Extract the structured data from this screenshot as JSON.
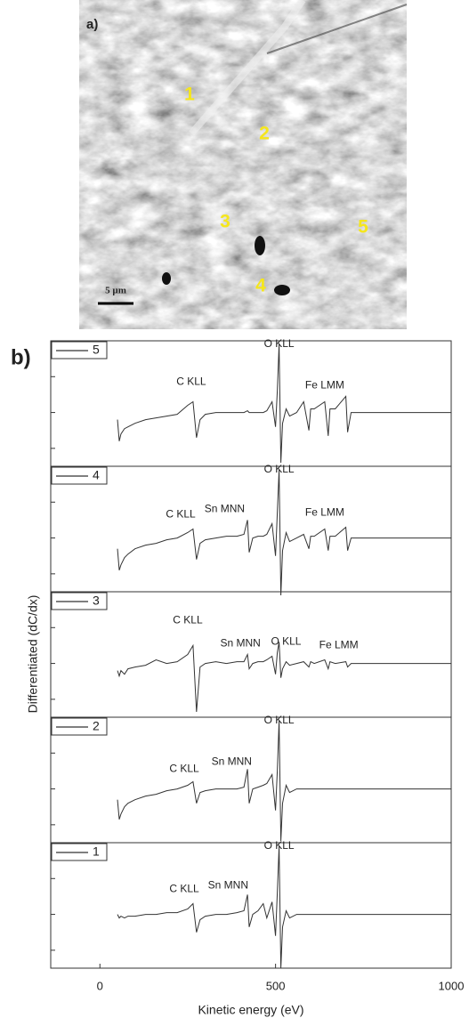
{
  "image": {
    "panel_label": "a)",
    "regions": [
      "1",
      "2",
      "3",
      "4",
      "5"
    ],
    "scale_bar": "5 µm"
  },
  "panel_label": "b)",
  "chart_data": {
    "type": "line",
    "x_label": "Kinetic energy (eV)",
    "y_label": "Differentiated (dC/dx)",
    "xlim": [
      -140,
      1000
    ],
    "xticks": [
      0,
      500,
      1000
    ],
    "ylim": [
      -1.5,
      2.0
    ],
    "yticks": [
      -1,
      0,
      1
    ],
    "x": [
      50,
      55,
      60,
      70,
      80,
      100,
      130,
      160,
      190,
      220,
      250,
      265,
      275,
      285,
      300,
      330,
      360,
      390,
      410,
      420,
      425,
      435,
      450,
      465,
      475,
      490,
      500,
      505,
      510,
      515,
      520,
      530,
      540,
      560,
      580,
      595,
      600,
      610,
      640,
      650,
      655,
      670,
      700,
      705,
      715,
      750,
      800,
      850,
      900,
      950,
      1000
    ],
    "series": [
      {
        "name": "5",
        "color": "#333333",
        "values": [
          -0.2,
          -0.8,
          -0.6,
          -0.45,
          -0.4,
          -0.3,
          -0.2,
          -0.15,
          -0.1,
          -0.05,
          0.2,
          0.3,
          -0.7,
          -0.2,
          -0.05,
          0,
          0,
          0,
          0,
          0.05,
          0,
          0,
          0,
          0,
          0.05,
          0.3,
          -0.4,
          0.6,
          1.9,
          -1.4,
          -0.3,
          0.1,
          -0.1,
          0,
          0.3,
          -0.5,
          0.1,
          0.1,
          0.3,
          -0.65,
          0.1,
          0.1,
          0.45,
          -0.55,
          0,
          0,
          0,
          0,
          0,
          0,
          0
        ],
        "annotations": [
          {
            "text": "C KLL",
            "x": 260,
            "y": 0.85
          },
          {
            "text": "O KLL",
            "x": 510,
            "y": 1.9
          },
          {
            "text": "Fe LMM",
            "x": 640,
            "y": 0.75
          }
        ]
      },
      {
        "name": "4",
        "color": "#333333",
        "values": [
          -0.3,
          -0.9,
          -0.75,
          -0.55,
          -0.45,
          -0.3,
          -0.2,
          -0.15,
          -0.05,
          0,
          0.15,
          0.25,
          -0.6,
          -0.15,
          -0.05,
          0,
          0.05,
          0.05,
          0.1,
          0.5,
          -0.4,
          0,
          0.05,
          0.05,
          0.1,
          0.4,
          -0.5,
          0.7,
          1.9,
          -1.6,
          -0.35,
          0.15,
          -0.1,
          0,
          0.1,
          -0.3,
          0.05,
          0.05,
          0.25,
          -0.35,
          0.05,
          0.05,
          0.3,
          -0.35,
          0,
          0,
          0,
          0,
          0,
          0,
          0
        ],
        "annotations": [
          {
            "text": "C KLL",
            "x": 230,
            "y": 0.65
          },
          {
            "text": "Sn MNN",
            "x": 355,
            "y": 0.8
          },
          {
            "text": "O KLL",
            "x": 510,
            "y": 1.9
          },
          {
            "text": "Fe LMM",
            "x": 640,
            "y": 0.7
          }
        ]
      },
      {
        "name": "3",
        "color": "#333333",
        "values": [
          -0.2,
          -0.35,
          -0.2,
          -0.3,
          -0.15,
          -0.1,
          -0.05,
          0.1,
          0,
          0.05,
          0.25,
          0.5,
          -1.35,
          -0.1,
          0,
          0.05,
          0,
          0.05,
          0.05,
          0.25,
          -0.15,
          0,
          0.05,
          0.05,
          0.1,
          0.2,
          -0.3,
          0.3,
          0.6,
          -0.4,
          -0.15,
          0.05,
          -0.05,
          0,
          0.05,
          -0.1,
          0.05,
          0,
          0.1,
          -0.15,
          0.05,
          0,
          0.05,
          -0.1,
          0,
          0,
          0,
          0,
          0,
          0,
          0
        ],
        "annotations": [
          {
            "text": "C KLL",
            "x": 250,
            "y": 1.2
          },
          {
            "text": "Sn MNN",
            "x": 400,
            "y": 0.55
          },
          {
            "text": "O KLL",
            "x": 530,
            "y": 0.6
          },
          {
            "text": "Fe LMM",
            "x": 680,
            "y": 0.5
          }
        ]
      },
      {
        "name": "2",
        "color": "#333333",
        "values": [
          -0.3,
          -0.85,
          -0.7,
          -0.5,
          -0.4,
          -0.3,
          -0.2,
          -0.15,
          -0.05,
          0,
          0.1,
          0.2,
          -0.4,
          -0.1,
          -0.05,
          0,
          0,
          0,
          0.05,
          0.55,
          -0.4,
          0,
          0.05,
          0.1,
          0.15,
          0.4,
          -0.6,
          0.5,
          1.9,
          -1.45,
          -0.4,
          0.1,
          -0.1,
          0,
          0,
          0,
          0,
          0,
          0,
          0,
          0,
          0,
          0,
          0,
          0,
          0,
          0,
          0,
          0,
          0,
          0
        ],
        "annotations": [
          {
            "text": "C KLL",
            "x": 240,
            "y": 0.55
          },
          {
            "text": "Sn MNN",
            "x": 375,
            "y": 0.75
          },
          {
            "text": "O KLL",
            "x": 510,
            "y": 1.9
          }
        ]
      },
      {
        "name": "1",
        "color": "#333333",
        "values": [
          0,
          -0.1,
          -0.05,
          -0.1,
          -0.05,
          -0.05,
          0,
          0,
          0.05,
          0.05,
          0.15,
          0.3,
          -0.5,
          -0.15,
          -0.05,
          0,
          0,
          0.05,
          0.1,
          0.55,
          -0.35,
          0,
          0.1,
          0.3,
          -0.1,
          0.35,
          -0.6,
          0.6,
          1.9,
          -1.5,
          -0.35,
          0.1,
          -0.1,
          0,
          0,
          0,
          0,
          0,
          0,
          0,
          0,
          0,
          0,
          0,
          0,
          0,
          0,
          0,
          0,
          0,
          0
        ],
        "annotations": [
          {
            "text": "C KLL",
            "x": 240,
            "y": 0.7
          },
          {
            "text": "Sn MNN",
            "x": 365,
            "y": 0.8
          },
          {
            "text": "O KLL",
            "x": 510,
            "y": 1.9
          }
        ]
      }
    ]
  }
}
